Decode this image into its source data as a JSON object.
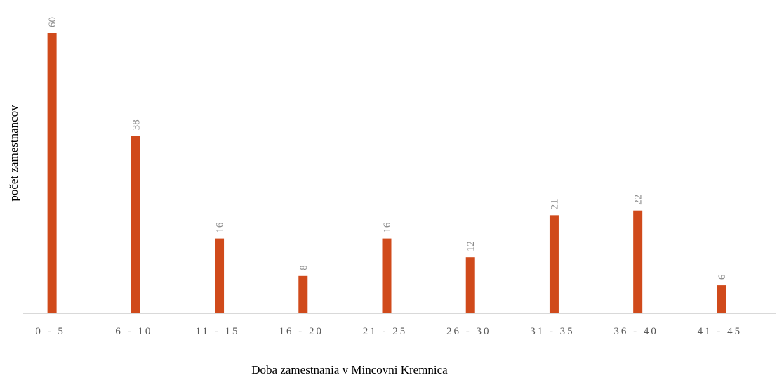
{
  "chart_data": {
    "type": "bar",
    "categories": [
      "0 - 5",
      "6 - 10",
      "11 - 15",
      "16 - 20",
      "21 - 25",
      "26 - 30",
      "31 - 35",
      "36 - 40",
      "41 - 45"
    ],
    "values": [
      60,
      38,
      16,
      8,
      16,
      12,
      21,
      22,
      6
    ],
    "data_labels": [
      "60",
      "38",
      "16",
      "8",
      "16",
      "12",
      "21",
      "22",
      "6"
    ],
    "xlabel": "Doba zamestnania v Mincovni Kremnica",
    "ylabel": "počet zamestnancov",
    "ylim": [
      0,
      60
    ],
    "grid": false,
    "bar_color": "#d04a1b",
    "axis_color": "#d9d9d9"
  }
}
